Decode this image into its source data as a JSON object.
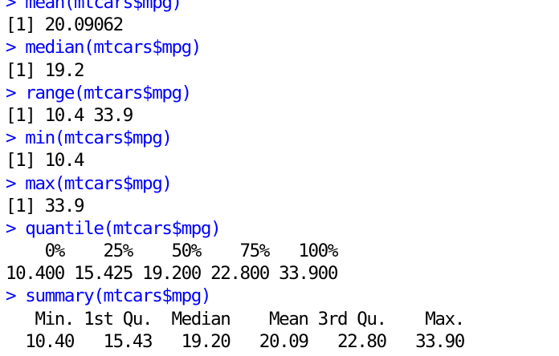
{
  "console": {
    "prompt": "> ",
    "lines": [
      {
        "type": "command",
        "text": "mean(mtcars$mpg)"
      },
      {
        "type": "output",
        "text": "[1] 20.09062"
      },
      {
        "type": "command",
        "text": "median(mtcars$mpg)"
      },
      {
        "type": "output",
        "text": "[1] 19.2"
      },
      {
        "type": "command",
        "text": "range(mtcars$mpg)"
      },
      {
        "type": "output",
        "text": "[1] 10.4 33.9"
      },
      {
        "type": "command",
        "text": "min(mtcars$mpg)"
      },
      {
        "type": "output",
        "text": "[1] 10.4"
      },
      {
        "type": "command",
        "text": "max(mtcars$mpg)"
      },
      {
        "type": "output",
        "text": "[1] 33.9"
      },
      {
        "type": "command",
        "text": "quantile(mtcars$mpg)"
      },
      {
        "type": "output",
        "text": "    0%    25%    50%    75%   100% "
      },
      {
        "type": "output",
        "text": "10.400 15.425 19.200 22.800 33.900 "
      },
      {
        "type": "command",
        "text": "summary(mtcars$mpg)"
      },
      {
        "type": "output",
        "text": "   Min. 1st Qu.  Median    Mean 3rd Qu.    Max. "
      },
      {
        "type": "output",
        "text": "  10.40   15.43   19.20   20.09   22.80   33.90 "
      }
    ]
  },
  "colors": {
    "command": "#0000ff",
    "output": "#000000",
    "background": "#ffffff"
  }
}
